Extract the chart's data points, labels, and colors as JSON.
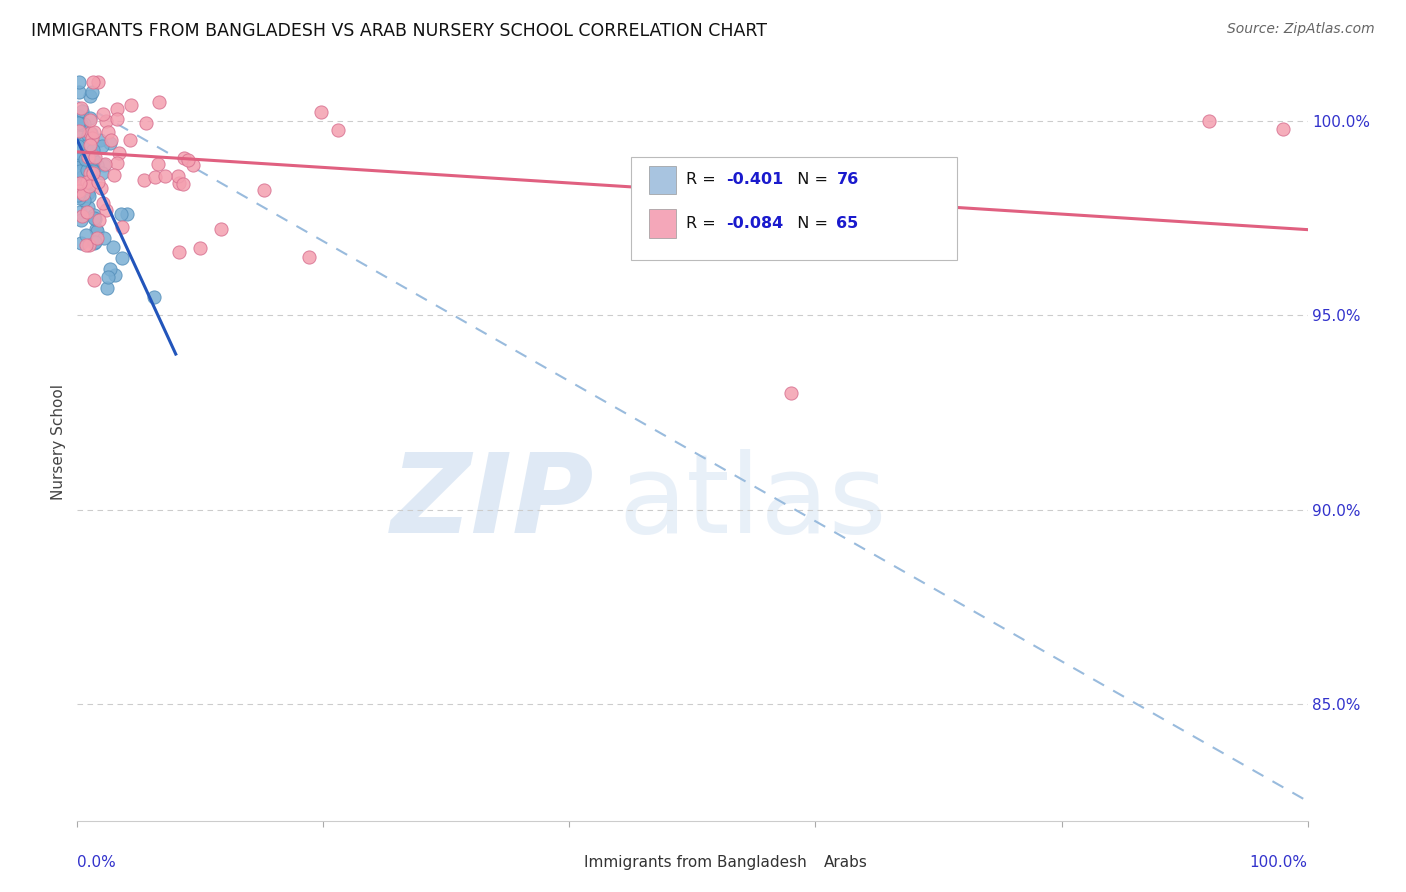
{
  "title": "IMMIGRANTS FROM BANGLADESH VS ARAB NURSERY SCHOOL CORRELATION CHART",
  "source": "Source: ZipAtlas.com",
  "ylabel": "Nursery School",
  "ytick_values": [
    100.0,
    95.0,
    90.0,
    85.0
  ],
  "ytick_labels": [
    "100.0%",
    "95.0%",
    "90.0%",
    "85.0%"
  ],
  "xmin": 0.0,
  "xmax": 100.0,
  "ymin": 82.0,
  "ymax": 101.5,
  "legend_entries": [
    {
      "r": "-0.401",
      "n": "76",
      "color": "#a8c4e0"
    },
    {
      "r": "-0.084",
      "n": "65",
      "color": "#f4a7b9"
    }
  ],
  "legend_r_color": "#1a1acd",
  "bg_color": "#ffffff",
  "grid_color": "#cccccc",
  "axis_color": "#3333cc",
  "bangladesh_color": "#7bafd4",
  "bangladesh_edge": "#5590bb",
  "arab_color": "#f4a0b0",
  "arab_edge": "#d87090",
  "trend_blue_color": "#2255bb",
  "trend_pink_color": "#e06080",
  "trend_dashed_color": "#99bbdd",
  "watermark_zip_color": "#c5d8ee",
  "watermark_atlas_color": "#c5d8ee",
  "bangladesh_seed": 101,
  "arab_seed": 202,
  "bang_trend_x": [
    0.0,
    8.0
  ],
  "bang_trend_y": [
    99.5,
    94.0
  ],
  "arab_trend_x": [
    0.0,
    100.0
  ],
  "arab_trend_y": [
    99.2,
    97.2
  ],
  "dash_trend_x": [
    0.0,
    100.0
  ],
  "dash_trend_y": [
    100.5,
    82.5
  ]
}
